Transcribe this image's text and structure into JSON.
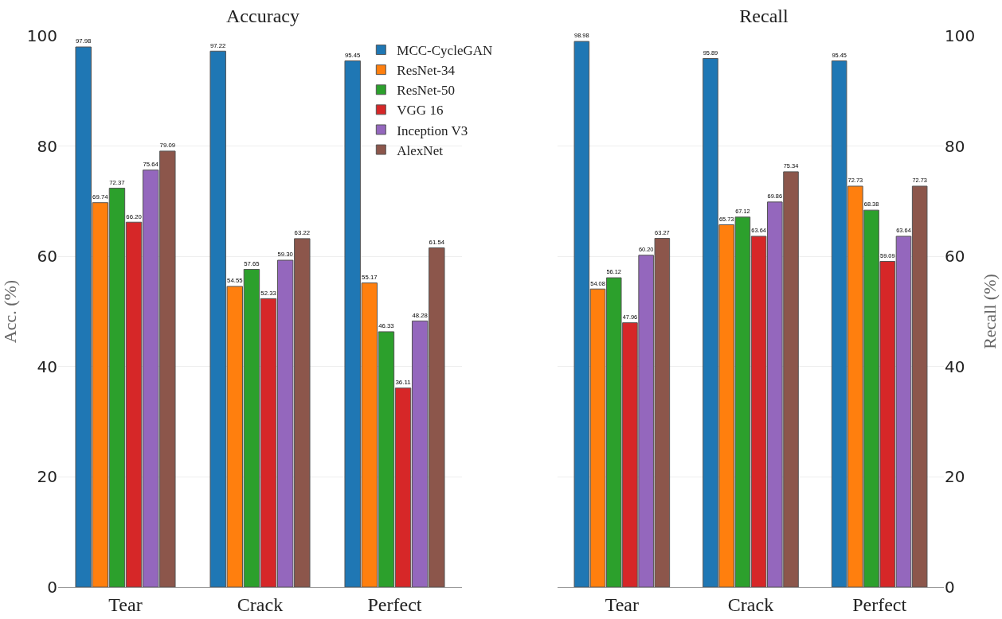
{
  "chart_data": [
    {
      "type": "bar",
      "title": "Accuracy",
      "ylabel": "Acc. (%)",
      "categories": [
        "Tear",
        "Crack",
        "Perfect"
      ],
      "ylim": [
        0,
        100
      ],
      "yticks": [
        0,
        20,
        40,
        60,
        80,
        100
      ],
      "grid": "y",
      "legend": "top right",
      "series": [
        {
          "name": "MCC-CycleGAN",
          "color": "#1f77b4",
          "values": [
            97.98,
            97.22,
            95.45
          ],
          "value_labels": [
            "97.98",
            "97.22",
            "95.45"
          ]
        },
        {
          "name": "ResNet-34",
          "color": "#ff7f0e",
          "values": [
            69.74,
            54.55,
            55.17
          ],
          "value_labels": [
            "69.74",
            "54.55",
            "55.17"
          ]
        },
        {
          "name": "ResNet-50",
          "color": "#2ca02c",
          "values": [
            72.37,
            57.65,
            46.33
          ],
          "value_labels": [
            "72.37",
            "57.65",
            "46.33"
          ]
        },
        {
          "name": "VGG 16",
          "color": "#d62728",
          "values": [
            66.2,
            52.33,
            36.11
          ],
          "value_labels": [
            "66.20",
            "52.33",
            "36.11"
          ]
        },
        {
          "name": "Inception V3",
          "color": "#9467bd",
          "values": [
            75.64,
            59.3,
            48.28
          ],
          "value_labels": [
            "75.64",
            "59.30",
            "48.28"
          ]
        },
        {
          "name": "AlexNet",
          "color": "#8c564b",
          "values": [
            79.09,
            63.22,
            61.54
          ],
          "value_labels": [
            "79.09",
            "63.22",
            "61.54"
          ]
        }
      ]
    },
    {
      "type": "bar",
      "title": "Recall",
      "y2label": "Recall (%)",
      "categories": [
        "Tear",
        "Crack",
        "Perfect"
      ],
      "y2lim": [
        0,
        100
      ],
      "y2ticks": [
        0,
        20,
        40,
        60,
        80,
        100
      ],
      "grid": "y",
      "series": [
        {
          "axis": "y2",
          "color": "#1f77b4",
          "values": [
            98.98,
            95.89,
            95.45
          ],
          "value_labels": [
            "98.98",
            "95.89",
            "95.45"
          ]
        },
        {
          "axis": "y2",
          "color": "#ff7f0e",
          "values": [
            54.08,
            65.73,
            72.73
          ],
          "value_labels": [
            "54.08",
            "65.73",
            "72.73"
          ]
        },
        {
          "axis": "y2",
          "color": "#2ca02c",
          "values": [
            56.12,
            67.12,
            68.38
          ],
          "value_labels": [
            "56.12",
            "67.12",
            "68.38"
          ]
        },
        {
          "axis": "y2",
          "color": "#d62728",
          "values": [
            47.96,
            63.64,
            59.09
          ],
          "value_labels": [
            "47.96",
            "63.64",
            "59.09"
          ]
        },
        {
          "axis": "y2",
          "color": "#9467bd",
          "values": [
            60.2,
            69.86,
            63.64
          ],
          "value_labels": [
            "60.20",
            "69.86",
            "63.64"
          ]
        },
        {
          "axis": "y2",
          "color": "#8c564b",
          "values": [
            63.27,
            75.34,
            72.73
          ],
          "value_labels": [
            "63.27",
            "75.34",
            "72.73"
          ]
        }
      ]
    }
  ]
}
